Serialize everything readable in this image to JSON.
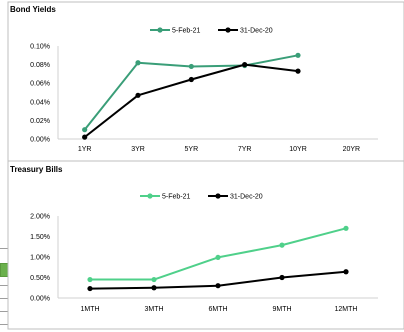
{
  "chart_data": [
    {
      "type": "line",
      "title": "Bond Yields",
      "categories": [
        "1YR",
        "3YR",
        "5YR",
        "7YR",
        "10YR",
        "20YR"
      ],
      "ylim": [
        0,
        0.1
      ],
      "yticks": [
        "0.00%",
        "0.02%",
        "0.04%",
        "0.06%",
        "0.08%",
        "0.10%"
      ],
      "legend": "top-center",
      "grid": false,
      "series": [
        {
          "name": "5-Feb-21",
          "color": "#3a9e78",
          "values": [
            0.01,
            0.082,
            0.078,
            0.079,
            0.09,
            null
          ]
        },
        {
          "name": "31-Dec-20",
          "color": "#000000",
          "values": [
            0.002,
            0.047,
            0.064,
            0.08,
            0.073,
            null
          ]
        }
      ]
    },
    {
      "type": "line",
      "title": "Treasury  Bills",
      "categories": [
        "1MTH",
        "3MTH",
        "6MTH",
        "9MTH",
        "12MTH"
      ],
      "ylim": [
        0,
        2.0
      ],
      "yticks": [
        "0.00%",
        "0.50%",
        "1.00%",
        "1.50%",
        "2.00%"
      ],
      "legend": "top-center",
      "grid": false,
      "series": [
        {
          "name": "5-Feb-21",
          "color": "#4fd08a",
          "values": [
            0.45,
            0.45,
            0.99,
            1.29,
            1.7
          ]
        },
        {
          "name": "31-Dec-20",
          "color": "#000000",
          "values": [
            0.23,
            0.25,
            0.3,
            0.5,
            0.64
          ]
        }
      ]
    }
  ]
}
